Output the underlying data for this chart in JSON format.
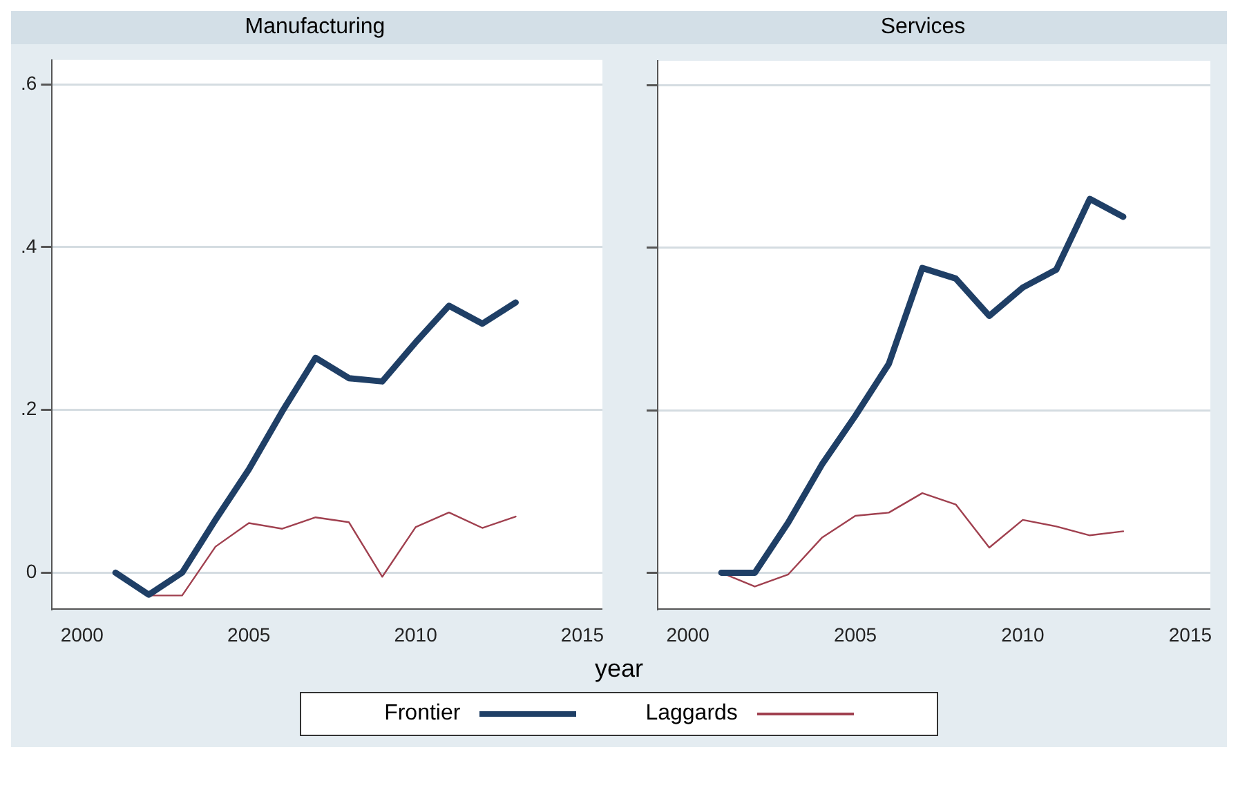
{
  "chart_data": [
    {
      "type": "line",
      "title": "Manufacturing",
      "xlabel": "year",
      "x": [
        2001,
        2002,
        2003,
        2004,
        2005,
        2006,
        2007,
        2008,
        2009,
        2010,
        2011,
        2012,
        2013
      ],
      "series": [
        {
          "name": "Frontier",
          "color": "#1f3f66",
          "values": [
            0,
            -0.027,
            0,
            0.065,
            0.127,
            0.198,
            0.264,
            0.239,
            0.235,
            0.283,
            0.328,
            0.306,
            0.332
          ]
        },
        {
          "name": "Laggards",
          "color": "#a0404f",
          "values": [
            0,
            -0.028,
            -0.028,
            0.032,
            0.061,
            0.054,
            0.068,
            0.062,
            -0.005,
            0.056,
            0.074,
            0.055,
            0.069
          ]
        }
      ],
      "xlim": [
        1999.1,
        2015.6
      ],
      "xticks": [
        2000,
        2005,
        2010,
        2015
      ],
      "ylim": [
        -0.045,
        0.63
      ],
      "yticks": [
        {
          "value": 0,
          "label": "0"
        },
        {
          "value": 0.2,
          "label": ".2"
        },
        {
          "value": 0.4,
          "label": ".4"
        },
        {
          "value": 0.6,
          "label": ".6"
        }
      ],
      "grid": "y",
      "legend": "bottom",
      "marker": "none"
    },
    {
      "type": "line",
      "title": "Services",
      "x": [
        2001,
        2002,
        2003,
        2004,
        2005,
        2006,
        2007,
        2008,
        2009,
        2010,
        2011,
        2012,
        2013
      ],
      "series": [
        {
          "color": "#1f3f66",
          "values": [
            0,
            0,
            0.062,
            0.133,
            0.193,
            0.257,
            0.375,
            0.362,
            0.316,
            0.351,
            0.373,
            0.46,
            0.438
          ]
        },
        {
          "color": "#a0404f",
          "values": [
            0,
            -0.017,
            -0.002,
            0.043,
            0.07,
            0.074,
            0.098,
            0.084,
            0.031,
            0.065,
            0.057,
            0.046,
            0.051
          ]
        }
      ],
      "xlim": [
        1999.1,
        2015.6
      ],
      "xticks": [
        2000,
        2005,
        2010,
        2015
      ],
      "ylim": [
        -0.045,
        0.63
      ],
      "yticks": [
        0,
        0.2,
        0.4,
        0.6
      ],
      "grid": "y",
      "tick_labels": "x",
      "marker": "none"
    }
  ]
}
